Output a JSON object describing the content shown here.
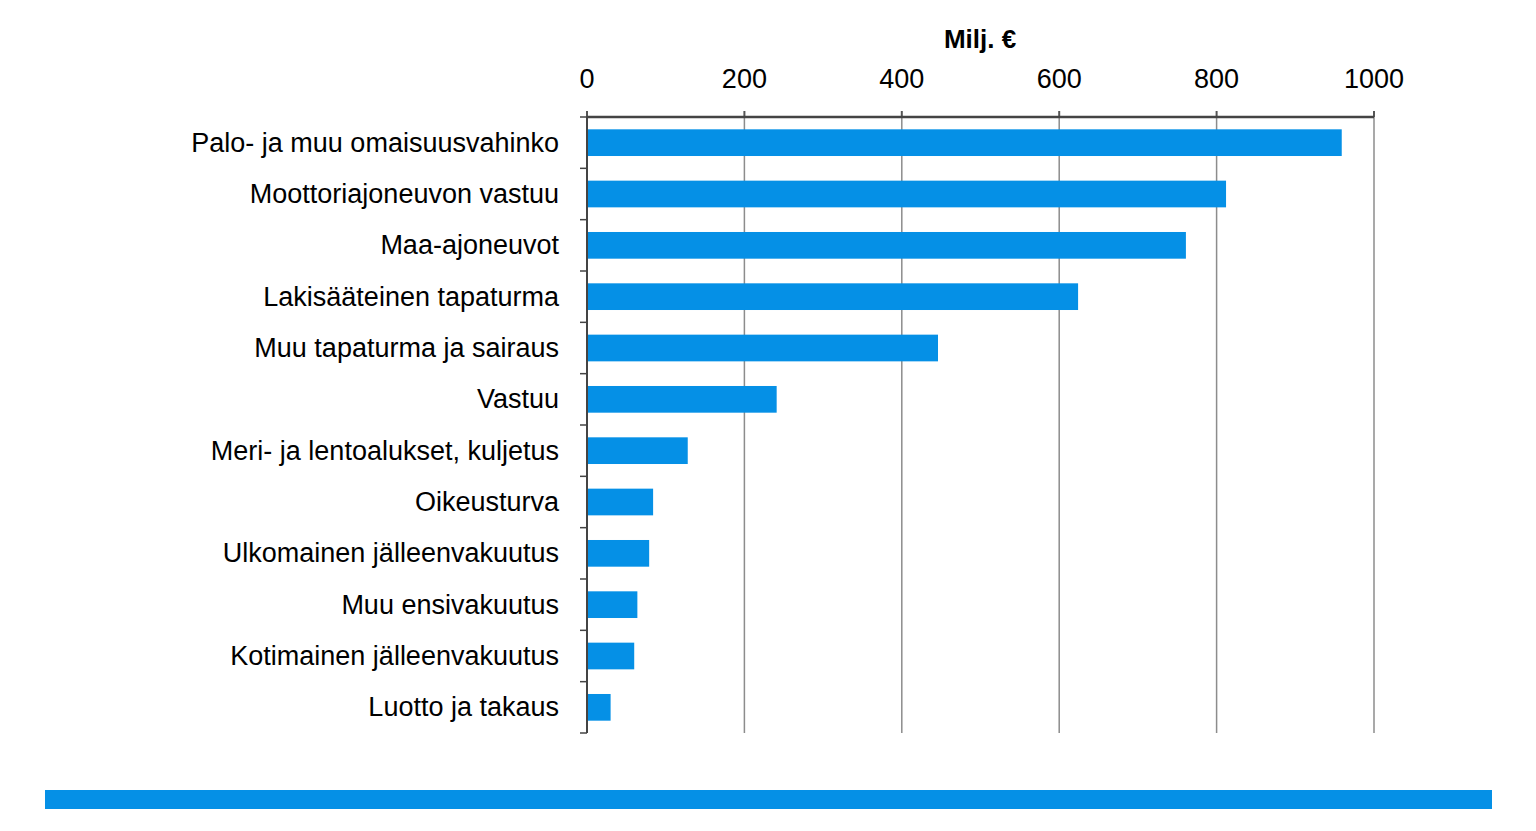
{
  "chart_data": {
    "type": "bar",
    "orientation": "horizontal",
    "xlabel": "Milj. €",
    "categories": [
      "Palo- ja muu omaisuusvahinko",
      "Moottoriajoneuvon vastuu",
      "Maa-ajoneuvot",
      "Lakisääteinen tapaturma",
      "Muu tapaturma ja sairaus",
      "Vastuu",
      "Meri- ja lentoalukset, kuljetus",
      "Oikeusturva",
      "Ulkomainen jälleenvakuutus",
      "Muu ensivakuutus",
      "Kotimainen jälleenvakuutus",
      "Luotto ja takaus"
    ],
    "values": [
      959,
      812,
      761,
      624,
      446,
      241,
      128,
      84,
      79,
      64,
      60,
      30
    ],
    "color": "#0590e6",
    "xlim": [
      0,
      1000
    ],
    "xticks": [
      0,
      200,
      400,
      600,
      800,
      1000
    ],
    "grid": true
  }
}
